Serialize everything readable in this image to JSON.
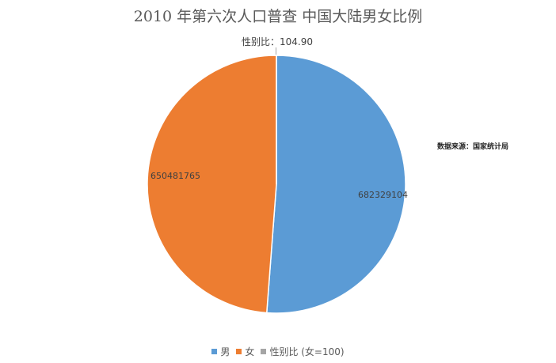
{
  "chart_data": {
    "type": "pie",
    "title": "2010 年第六次人口普查 中国大陆男女比例",
    "slices": [
      {
        "label": "男",
        "value": 682329104,
        "display": "682329104",
        "color": "#5b9bd5"
      },
      {
        "label": "女",
        "value": 650481765,
        "display": "650481765",
        "color": "#ed7d31"
      },
      {
        "label": "性别比 (女=100)",
        "value": 104.9,
        "display": "104.90",
        "color": "#a5a5a5"
      }
    ],
    "annotation": {
      "prefix": "性别比：",
      "value": "104.90"
    },
    "source_note": "数据来源：国家统计局",
    "legend_position": "bottom"
  }
}
